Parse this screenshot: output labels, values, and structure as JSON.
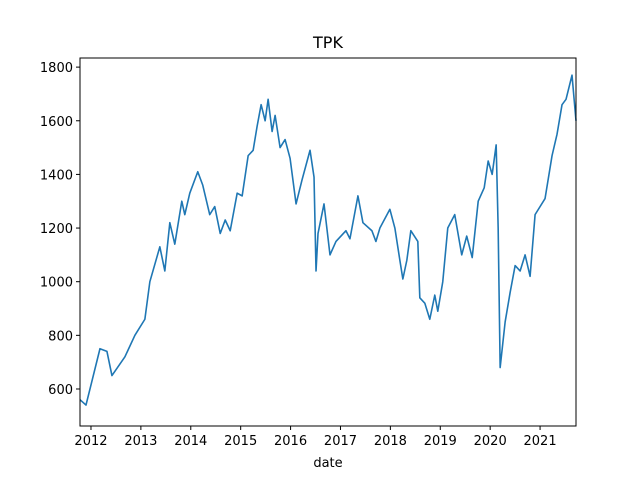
{
  "chart_data": {
    "type": "line",
    "title": "TPK",
    "xlabel": "date",
    "color": "#1f77b4",
    "x": [
      2011.78,
      2011.9,
      2012.18,
      2012.32,
      2012.42,
      2012.68,
      2012.88,
      2013.08,
      2013.18,
      2013.38,
      2013.48,
      2013.58,
      2013.68,
      2013.82,
      2013.88,
      2013.98,
      2014.14,
      2014.24,
      2014.38,
      2014.48,
      2014.59,
      2014.69,
      2014.79,
      2014.93,
      2015.03,
      2015.15,
      2015.25,
      2015.33,
      2015.41,
      2015.49,
      2015.55,
      2015.63,
      2015.69,
      2015.79,
      2015.89,
      2015.99,
      2016.11,
      2016.23,
      2016.39,
      2016.47,
      2016.51,
      2016.55,
      2016.67,
      2016.79,
      2016.91,
      2017.11,
      2017.19,
      2017.35,
      2017.45,
      2017.63,
      2017.71,
      2017.79,
      2017.99,
      2018.09,
      2018.19,
      2018.25,
      2018.33,
      2018.41,
      2018.55,
      2018.59,
      2018.69,
      2018.79,
      2018.89,
      2018.95,
      2019.05,
      2019.15,
      2019.29,
      2019.43,
      2019.53,
      2019.64,
      2019.76,
      2019.88,
      2019.96,
      2020.04,
      2020.12,
      2020.16,
      2020.2,
      2020.3,
      2020.4,
      2020.5,
      2020.6,
      2020.7,
      2020.8,
      2020.9,
      2021.1,
      2021.24,
      2021.34,
      2021.44,
      2021.52,
      2021.64,
      2021.72
    ],
    "values": [
      560,
      540,
      750,
      740,
      650,
      720,
      800,
      860,
      1000,
      1130,
      1040,
      1220,
      1140,
      1300,
      1250,
      1330,
      1410,
      1360,
      1250,
      1280,
      1180,
      1230,
      1190,
      1330,
      1320,
      1470,
      1490,
      1580,
      1660,
      1600,
      1680,
      1560,
      1620,
      1500,
      1530,
      1460,
      1290,
      1380,
      1490,
      1390,
      1040,
      1180,
      1290,
      1100,
      1150,
      1190,
      1160,
      1320,
      1220,
      1190,
      1150,
      1200,
      1270,
      1200,
      1080,
      1010,
      1080,
      1190,
      1150,
      940,
      920,
      860,
      950,
      890,
      1000,
      1200,
      1250,
      1100,
      1170,
      1090,
      1300,
      1350,
      1450,
      1400,
      1510,
      1200,
      680,
      850,
      960,
      1060,
      1040,
      1100,
      1020,
      1250,
      1310,
      1470,
      1550,
      1660,
      1680,
      1770,
      1600
    ],
    "xlim": [
      2011.78,
      2021.72
    ],
    "xticks": [
      2012,
      2013,
      2014,
      2015,
      2016,
      2017,
      2018,
      2019,
      2020,
      2021
    ],
    "ylim": [
      462,
      1834
    ],
    "yticks": [
      600,
      800,
      1000,
      1200,
      1400,
      1600,
      1800
    ]
  }
}
